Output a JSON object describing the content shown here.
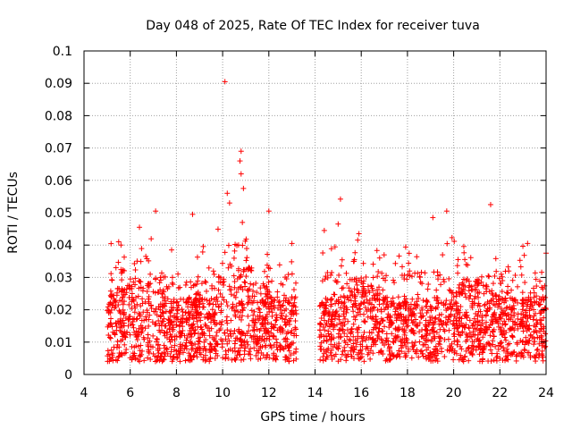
{
  "chart_data": {
    "type": "scatter",
    "title": "Day 048 of 2025, Rate Of TEC Index for receiver tuva",
    "xlabel": "GPS time / hours",
    "ylabel": "ROTI / TECUs",
    "xlim": [
      4,
      24
    ],
    "ylim": [
      0,
      0.1
    ],
    "xticks": [
      "4",
      "6",
      "8",
      "10",
      "12",
      "14",
      "16",
      "18",
      "20",
      "22",
      "24"
    ],
    "yticks": [
      "0",
      "0.01",
      "0.02",
      "0.03",
      "0.04",
      "0.05",
      "0.06",
      "0.07",
      "0.08",
      "0.09",
      "0.1"
    ],
    "grid": true,
    "marker": "+",
    "color": "#ff0000",
    "series": [
      {
        "name": "ROTI",
        "segments": [
          [
            5.0,
            13.2
          ],
          [
            14.2,
            24.0
          ]
        ],
        "notable_points": [
          {
            "x": 10.1,
            "y": 0.0905
          },
          {
            "x": 10.8,
            "y": 0.069
          },
          {
            "x": 10.75,
            "y": 0.066
          },
          {
            "x": 10.8,
            "y": 0.062
          },
          {
            "x": 10.9,
            "y": 0.0575
          },
          {
            "x": 10.2,
            "y": 0.056
          },
          {
            "x": 10.3,
            "y": 0.053
          },
          {
            "x": 15.1,
            "y": 0.0542
          },
          {
            "x": 7.1,
            "y": 0.0505
          },
          {
            "x": 8.7,
            "y": 0.0495
          },
          {
            "x": 12.0,
            "y": 0.0505
          },
          {
            "x": 19.7,
            "y": 0.0505
          },
          {
            "x": 21.6,
            "y": 0.0525
          },
          {
            "x": 19.1,
            "y": 0.0485
          },
          {
            "x": 15.0,
            "y": 0.0465
          },
          {
            "x": 6.4,
            "y": 0.0455
          },
          {
            "x": 14.4,
            "y": 0.0445
          },
          {
            "x": 15.9,
            "y": 0.0435
          },
          {
            "x": 5.5,
            "y": 0.041
          },
          {
            "x": 5.6,
            "y": 0.04
          },
          {
            "x": 13.0,
            "y": 0.0405
          },
          {
            "x": 23.2,
            "y": 0.0405
          },
          {
            "x": 24.0,
            "y": 0.0375
          }
        ]
      }
    ]
  }
}
